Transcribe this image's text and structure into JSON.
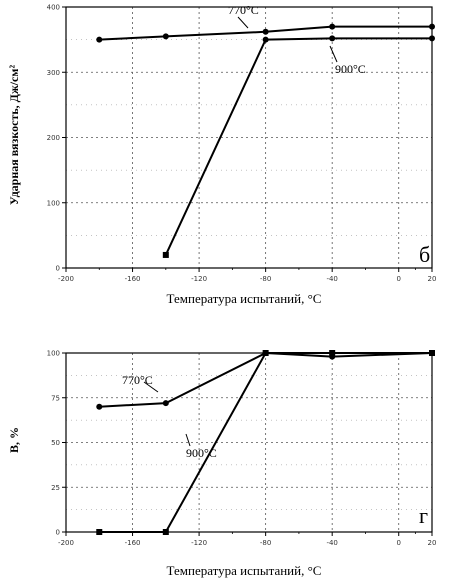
{
  "chart_data": [
    {
      "type": "line",
      "panel_letter": "б",
      "xlabel": "Температура испытаний, °С",
      "ylabel": "Ударная вязкость, Дж/см²",
      "xlim": [
        -200,
        20
      ],
      "ylim": [
        0,
        400
      ],
      "xticks": [
        "-200",
        "-160",
        "-120",
        "-80",
        "-40",
        "0",
        "20"
      ],
      "xtick_values": [
        -200,
        -160,
        -120,
        -80,
        -40,
        0,
        20
      ],
      "yticks": [
        "0",
        "100",
        "200",
        "300",
        "400"
      ],
      "ytick_values": [
        0,
        100,
        200,
        300,
        400
      ],
      "grid": true,
      "series": [
        {
          "name": "770°С",
          "x": [
            -180,
            -140,
            -80,
            -40,
            20
          ],
          "y": [
            350,
            355,
            362,
            370,
            370
          ]
        },
        {
          "name": "900°С",
          "x": [
            -140,
            -80,
            -40,
            20
          ],
          "y": [
            20,
            350,
            352,
            352
          ]
        }
      ]
    },
    {
      "type": "line",
      "panel_letter": "г",
      "xlabel": "Температура испытаний, °С",
      "ylabel": "B, %",
      "xlim": [
        -200,
        20
      ],
      "ylim": [
        0,
        100
      ],
      "xticks": [
        "-200",
        "-160",
        "-120",
        "-80",
        "-40",
        "0",
        "20"
      ],
      "xtick_values": [
        -200,
        -160,
        -120,
        -80,
        -40,
        0,
        20
      ],
      "yticks": [
        "0",
        "25",
        "50",
        "75",
        "100"
      ],
      "ytick_values": [
        0,
        25,
        50,
        75,
        100
      ],
      "grid": true,
      "series": [
        {
          "name": "770°С",
          "x": [
            -180,
            -140,
            -80,
            -40,
            20
          ],
          "y": [
            70,
            72,
            100,
            98,
            100
          ]
        },
        {
          "name": "900°С",
          "x": [
            -180,
            -140,
            -80,
            -40,
            20
          ],
          "y": [
            0,
            0,
            100,
            100,
            100
          ]
        }
      ]
    }
  ]
}
